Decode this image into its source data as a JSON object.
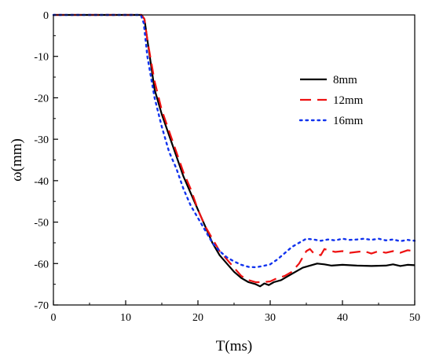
{
  "chart_data": {
    "type": "line",
    "title": "",
    "xlabel": "T(ms)",
    "ylabel": "ω(mm)",
    "xlim": [
      0,
      50
    ],
    "ylim": [
      -70,
      0
    ],
    "xticks": [
      0,
      10,
      20,
      30,
      40,
      50
    ],
    "yticks": [
      0,
      -10,
      -20,
      -30,
      -40,
      -50,
      -60,
      -70
    ],
    "grid": false,
    "legend_position": "right",
    "series": [
      {
        "name": "8mm",
        "color": "#000000",
        "style": "solid",
        "points": [
          [
            0,
            0
          ],
          [
            12.2,
            0
          ],
          [
            12.6,
            -1
          ],
          [
            13,
            -6
          ],
          [
            14,
            -18
          ],
          [
            15,
            -24
          ],
          [
            16,
            -29
          ],
          [
            17,
            -34
          ],
          [
            18,
            -39
          ],
          [
            19,
            -43
          ],
          [
            20,
            -47
          ],
          [
            21,
            -51
          ],
          [
            22,
            -55
          ],
          [
            23,
            -58
          ],
          [
            24,
            -60
          ],
          [
            25,
            -62
          ],
          [
            26,
            -63.5
          ],
          [
            27,
            -64.5
          ],
          [
            28,
            -65
          ],
          [
            28.6,
            -65.5
          ],
          [
            29.2,
            -64.8
          ],
          [
            29.8,
            -65.2
          ],
          [
            30.5,
            -64.5
          ],
          [
            31.5,
            -64
          ],
          [
            32.5,
            -63
          ],
          [
            33.5,
            -62
          ],
          [
            34.5,
            -61
          ],
          [
            35.5,
            -60.5
          ],
          [
            36.5,
            -60
          ],
          [
            37.5,
            -60.2
          ],
          [
            38.5,
            -60.5
          ],
          [
            40,
            -60.3
          ],
          [
            42,
            -60.5
          ],
          [
            44,
            -60.6
          ],
          [
            46,
            -60.5
          ],
          [
            47,
            -60.2
          ],
          [
            48,
            -60.6
          ],
          [
            49,
            -60.3
          ],
          [
            50,
            -60.4
          ]
        ]
      },
      {
        "name": "12mm",
        "color": "#ee1111",
        "style": "dashed",
        "points": [
          [
            0,
            0
          ],
          [
            12.2,
            0
          ],
          [
            12.6,
            -1
          ],
          [
            13,
            -6
          ],
          [
            14,
            -16
          ],
          [
            15,
            -23
          ],
          [
            16,
            -28
          ],
          [
            17,
            -33
          ],
          [
            18,
            -38
          ],
          [
            19,
            -42
          ],
          [
            20,
            -47
          ],
          [
            21,
            -51
          ],
          [
            22,
            -54
          ],
          [
            23,
            -57
          ],
          [
            24,
            -59
          ],
          [
            25,
            -61
          ],
          [
            26,
            -63
          ],
          [
            27,
            -64
          ],
          [
            28,
            -64.5
          ],
          [
            29,
            -64.5
          ],
          [
            30,
            -64.3
          ],
          [
            31,
            -63.5
          ],
          [
            32,
            -63
          ],
          [
            33,
            -62
          ],
          [
            34,
            -60
          ],
          [
            35,
            -57
          ],
          [
            35.5,
            -56.5
          ],
          [
            36,
            -57.5
          ],
          [
            37,
            -58
          ],
          [
            37.5,
            -56.5
          ],
          [
            38,
            -56.8
          ],
          [
            39,
            -57.2
          ],
          [
            40,
            -57
          ],
          [
            41,
            -57.4
          ],
          [
            42,
            -57.2
          ],
          [
            43,
            -57
          ],
          [
            44,
            -57.6
          ],
          [
            45,
            -57
          ],
          [
            46,
            -57.4
          ],
          [
            47,
            -57
          ],
          [
            48,
            -57.4
          ],
          [
            49,
            -56.8
          ],
          [
            50,
            -57
          ]
        ]
      },
      {
        "name": "16mm",
        "color": "#1133ee",
        "style": "dotted",
        "points": [
          [
            0,
            0
          ],
          [
            12.1,
            0
          ],
          [
            12.5,
            -2
          ],
          [
            13,
            -10
          ],
          [
            14,
            -20
          ],
          [
            15,
            -27
          ],
          [
            16,
            -33
          ],
          [
            17,
            -37
          ],
          [
            18,
            -42
          ],
          [
            19,
            -46
          ],
          [
            20,
            -49
          ],
          [
            21,
            -52
          ],
          [
            22,
            -55
          ],
          [
            23,
            -57
          ],
          [
            24,
            -58.5
          ],
          [
            25,
            -59.5
          ],
          [
            26,
            -60.3
          ],
          [
            27,
            -60.8
          ],
          [
            28,
            -60.9
          ],
          [
            29,
            -60.6
          ],
          [
            30,
            -60.2
          ],
          [
            31,
            -59
          ],
          [
            32,
            -57.5
          ],
          [
            33,
            -56
          ],
          [
            34,
            -55
          ],
          [
            35,
            -54
          ],
          [
            36,
            -54.2
          ],
          [
            37,
            -54.5
          ],
          [
            38,
            -54.2
          ],
          [
            39,
            -54.4
          ],
          [
            40,
            -54
          ],
          [
            41,
            -54.3
          ],
          [
            42,
            -54.2
          ],
          [
            43,
            -54
          ],
          [
            44,
            -54.3
          ],
          [
            45,
            -54
          ],
          [
            46,
            -54.4
          ],
          [
            47,
            -54.2
          ],
          [
            48,
            -54.6
          ],
          [
            49,
            -54.3
          ],
          [
            50,
            -54.5
          ]
        ]
      }
    ]
  }
}
